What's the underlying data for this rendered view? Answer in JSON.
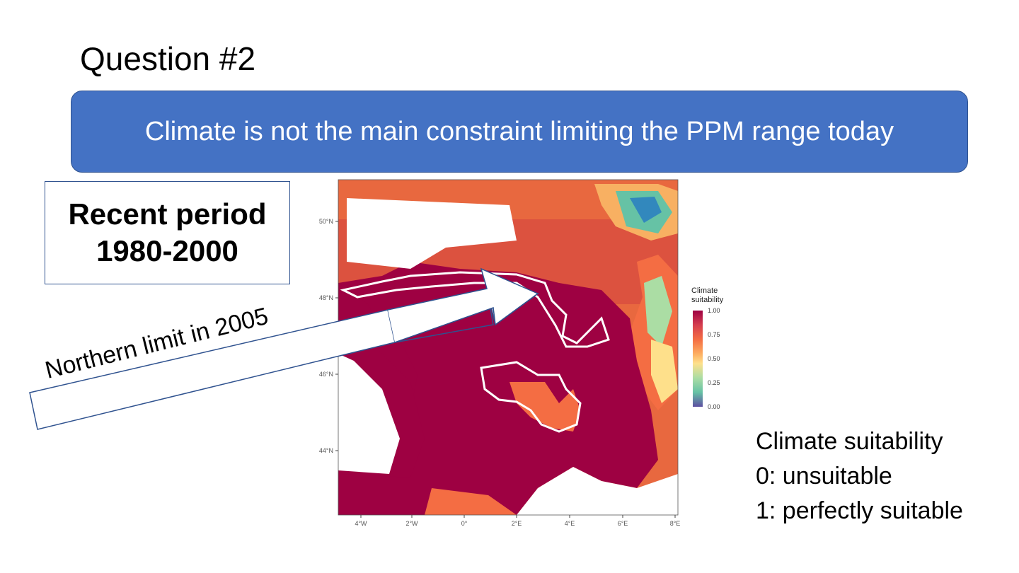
{
  "slide": {
    "title": "Question #2",
    "banner": "Climate is not the main constraint limiting the PPM range today",
    "period_label_line1": "Recent period",
    "period_label_line2": "1980-2000",
    "arrow_label": "Northern limit in 2005"
  },
  "map": {
    "x_ticks": [
      "4°W",
      "2°W",
      "0°",
      "2°E",
      "4°E",
      "6°E",
      "8°E"
    ],
    "y_ticks": [
      "50°N",
      "48°N",
      "46°N",
      "44°N"
    ],
    "legend_title_line1": "Climate",
    "legend_title_line2": "suitability",
    "legend_ticks": [
      "1.00",
      "0.75",
      "0.50",
      "0.25",
      "0.00"
    ],
    "colors": {
      "high": "#9e0142",
      "mid_high": "#f46d43",
      "mid": "#fee08b",
      "mid_low": "#abdda4",
      "low": "#5e4fa2",
      "ocean": "#ffffff",
      "boundary": "#ffffff"
    }
  },
  "caption": {
    "line1": "Climate suitability",
    "line2": "0: unsuitable",
    "line3": "1: perfectly suitable"
  }
}
